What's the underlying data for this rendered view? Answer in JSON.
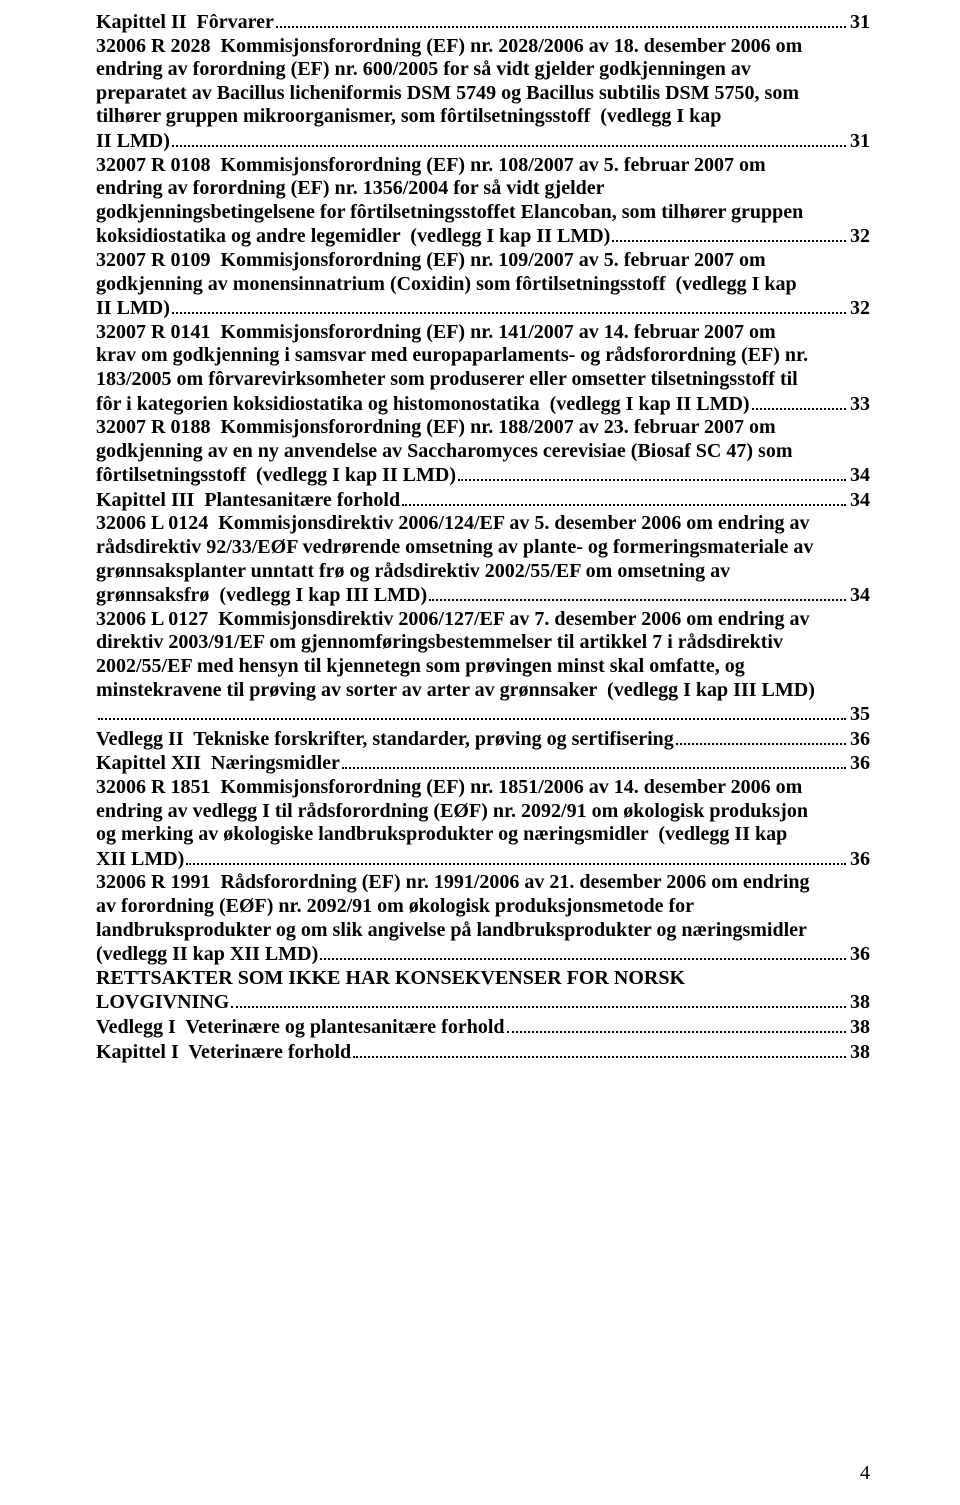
{
  "page_number": "4",
  "entries": [
    {
      "pre": [
        "Kapittel II  Fôrvarer"
      ],
      "page": "31"
    },
    {
      "pre": [
        "32006 R 2028  Kommisjonsforordning (EF) nr. 2028/2006 av 18. desember 2006 om",
        "endring av forordning (EF) nr. 600/2005 for så vidt gjelder godkjenningen av",
        "preparatet av Bacillus licheniformis DSM 5749 og Bacillus subtilis DSM 5750, som",
        "tilhører gruppen mikroorganismer, som fôrtilsetningsstoff  (vedlegg I kap",
        "II LMD)"
      ],
      "page": "31"
    },
    {
      "pre": [
        "32007 R 0108  Kommisjonsforordning (EF) nr. 108/2007 av 5. februar 2007 om",
        "endring av forordning (EF) nr. 1356/2004 for så vidt gjelder",
        "godkjenningsbetingelsene for fôrtilsetningsstoffet Elancoban, som tilhører gruppen",
        "koksidiostatika og andre legemidler  (vedlegg I kap II LMD)"
      ],
      "page": "32"
    },
    {
      "pre": [
        "32007 R 0109  Kommisjonsforordning (EF) nr. 109/2007 av 5. februar 2007 om",
        "godkjenning av monensinnatrium (Coxidin) som fôrtilsetningsstoff  (vedlegg I kap",
        "II LMD)"
      ],
      "page": "32"
    },
    {
      "pre": [
        "32007 R 0141  Kommisjonsforordning (EF) nr. 141/2007 av 14. februar 2007 om",
        "krav om godkjenning i samsvar med europaparlaments- og rådsforordning (EF) nr.",
        "183/2005 om fôrvarevirksomheter som produserer eller omsetter tilsetningsstoff til",
        "fôr i kategorien koksidiostatika og histomonostatika  (vedlegg I kap II LMD)"
      ],
      "page": "33"
    },
    {
      "pre": [
        "32007 R 0188  Kommisjonsforordning (EF) nr. 188/2007 av 23. februar 2007 om",
        "godkjenning av en ny anvendelse av Saccharomyces cerevisiae (Biosaf SC 47) som",
        "fôrtilsetningsstoff  (vedlegg I kap II LMD)"
      ],
      "page": "34"
    },
    {
      "pre": [
        "Kapittel III  Plantesanitære forhold"
      ],
      "page": "34"
    },
    {
      "pre": [
        "32006 L 0124  Kommisjonsdirektiv 2006/124/EF av 5. desember 2006 om endring av",
        "rådsdirektiv 92/33/EØF vedrørende omsetning av plante- og formeringsmateriale av",
        "grønnsaksplanter unntatt frø og rådsdirektiv 2002/55/EF om omsetning av",
        "grønnsaksfrø  (vedlegg I kap III LMD)"
      ],
      "page": "34"
    },
    {
      "pre": [
        "32006 L 0127  Kommisjonsdirektiv 2006/127/EF av 7. desember 2006 om endring av",
        "direktiv 2003/91/EF om gjennomføringsbestemmelser til artikkel 7 i rådsdirektiv",
        "2002/55/EF med hensyn til kjennetegn som prøvingen minst skal omfatte, og",
        "minstekravene til prøving av sorter av arter av grønnsaker  (vedlegg I kap III LMD)",
        ""
      ],
      "page": "35"
    },
    {
      "pre": [
        "Vedlegg II  Tekniske forskrifter, standarder, prøving og sertifisering"
      ],
      "page": "36"
    },
    {
      "pre": [
        "Kapittel XII  Næringsmidler"
      ],
      "page": "36"
    },
    {
      "pre": [
        "32006 R 1851  Kommisjonsforordning (EF) nr. 1851/2006 av 14. desember 2006 om",
        "endring av vedlegg I til rådsforordning (EØF) nr. 2092/91 om økologisk produksjon",
        "og merking av økologiske landbruksprodukter og næringsmidler  (vedlegg II kap",
        "XII LMD)"
      ],
      "page": "36"
    },
    {
      "pre": [
        "32006 R 1991  Rådsforordning (EF) nr. 1991/2006 av 21. desember 2006 om endring",
        "av forordning (EØF) nr. 2092/91 om økologisk produksjonsmetode for",
        "landbruksprodukter og om slik angivelse på landbruksprodukter og næringsmidler",
        "(vedlegg II kap XII LMD)"
      ],
      "page": "36"
    },
    {
      "pre": [
        "RETTSAKTER SOM IKKE HAR KONSEKVENSER FOR NORSK",
        "LOVGIVNING"
      ],
      "page": "38"
    },
    {
      "pre": [
        "Vedlegg I  Veterinære og plantesanitære forhold"
      ],
      "page": "38"
    },
    {
      "pre": [
        "Kapittel I  Veterinære forhold"
      ],
      "page": "38"
    }
  ]
}
